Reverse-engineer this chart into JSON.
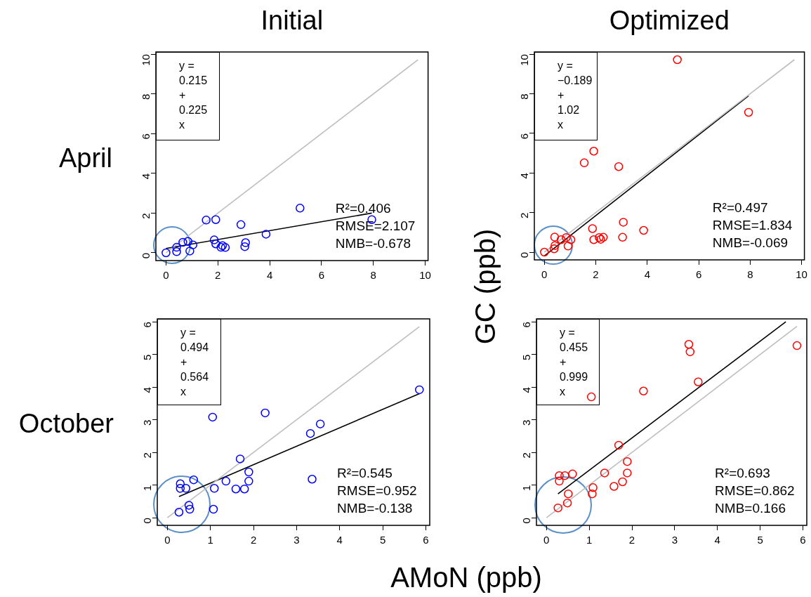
{
  "chart_data": [
    {
      "type": "scatter",
      "title": "Initial",
      "ylabel": "April",
      "xlim": [
        -0.39,
        10.11
      ],
      "ylim": [
        -0.39,
        10.11
      ],
      "xticks": [
        0,
        2,
        4,
        6,
        8,
        10
      ],
      "yticks": [
        0,
        2,
        4,
        6,
        8,
        10
      ],
      "grid": false,
      "marker": "circle",
      "annotations": [
        "y = 0.215 + 0.225 x",
        "R²=0.406",
        "RMSE=2.107",
        "NMB=-0.678"
      ],
      "series": [
        {
          "color": "#bebebe",
          "type": "line",
          "marker": "none",
          "x": [
            0,
            9.72
          ],
          "values": [
            0,
            9.72
          ]
        },
        {
          "color": "#000000",
          "type": "line",
          "marker": "none",
          "x": [
            0,
            7.94
          ],
          "values": [
            0.22,
            2.0
          ]
        },
        {
          "color": "#0000ff",
          "x": [
            0,
            0.41,
            0.41,
            0.65,
            0.85,
            0.92,
            1.04,
            1.55,
            1.92,
            1.86,
            1.92,
            2.12,
            2.18,
            2.29,
            2.89,
            3.07,
            3.04,
            3.86,
            5.17,
            7.94
          ],
          "values": [
            0,
            0.28,
            0.06,
            0.53,
            0.57,
            0.09,
            0.4,
            1.65,
            1.67,
            0.65,
            0.45,
            0.28,
            0.36,
            0.27,
            1.42,
            0.51,
            0.31,
            0.94,
            2.25,
            1.67
          ]
        }
      ]
    },
    {
      "type": "scatter",
      "title": "Optimized",
      "ylabel": "GC (ppb)",
      "xlim": [
        -0.39,
        10.11
      ],
      "ylim": [
        -0.39,
        10.11
      ],
      "xticks": [
        0,
        2,
        4,
        6,
        8,
        10
      ],
      "yticks": [
        0,
        2,
        4,
        6,
        8,
        10
      ],
      "grid": false,
      "marker": "circle",
      "annotations": [
        "y = −0.189 + 1.02 x",
        "R²=0.497",
        "RMSE=1.834",
        "NMB=-0.069"
      ],
      "series": [
        {
          "color": "#bebebe",
          "type": "line",
          "marker": "none",
          "x": [
            0,
            9.72
          ],
          "values": [
            0,
            9.72
          ]
        },
        {
          "color": "#000000",
          "type": "line",
          "marker": "none",
          "x": [
            0,
            7.94
          ],
          "values": [
            -0.19,
            7.9
          ]
        },
        {
          "color": "#ff0000",
          "x": [
            0,
            0.4,
            0.41,
            0.38,
            0.65,
            0.85,
            1.03,
            0.92,
            1.55,
            1.92,
            1.87,
            1.92,
            2.13,
            2.19,
            2.29,
            2.89,
            3.07,
            3.04,
            3.86,
            5.17,
            7.94
          ],
          "values": [
            0,
            0.76,
            0.33,
            0.17,
            0.63,
            0.74,
            0.63,
            0.31,
            4.51,
            5.1,
            1.19,
            0.63,
            0.74,
            0.65,
            0.75,
            4.32,
            1.51,
            0.75,
            1.1,
            9.72,
            7.06
          ]
        }
      ]
    },
    {
      "type": "scatter",
      "ylabel": "October",
      "xlim": [
        -0.234,
        6.09
      ],
      "ylim": [
        -0.234,
        6.09
      ],
      "xticks": [
        0,
        1,
        2,
        3,
        4,
        5,
        6
      ],
      "yticks": [
        0,
        1,
        2,
        3,
        4,
        5,
        6
      ],
      "grid": false,
      "marker": "circle",
      "annotations": [
        "y = 0.494 + 0.564 x",
        "R²=0.545",
        "RMSE=0.952",
        "NMB=-0.138"
      ],
      "series": [
        {
          "color": "#bebebe",
          "type": "line",
          "marker": "none",
          "x": [
            0,
            5.85
          ],
          "values": [
            0,
            5.85
          ]
        },
        {
          "color": "#000000",
          "type": "line",
          "marker": "none",
          "x": [
            0.27,
            5.85
          ],
          "values": [
            0.65,
            3.8
          ]
        },
        {
          "color": "#0000ff",
          "x": [
            0.27,
            0.3,
            0.3,
            0.43,
            0.5,
            0.52,
            0.61,
            1.05,
            1.09,
            1.07,
            1.36,
            1.59,
            1.69,
            1.79,
            1.89,
            1.89,
            2.27,
            3.32,
            3.55,
            3.36,
            5.85
          ],
          "values": [
            0.17,
            1.04,
            0.9,
            0.9,
            0.38,
            0.26,
            1.16,
            3.08,
            0.9,
            0.26,
            1.12,
            0.88,
            1.8,
            0.88,
            1.4,
            1.12,
            3.21,
            2.58,
            2.87,
            1.18,
            3.92
          ]
        }
      ]
    },
    {
      "type": "scatter",
      "xlabel": "AMoN (ppb)",
      "xlim": [
        -0.234,
        6.09
      ],
      "ylim": [
        -0.234,
        6.09
      ],
      "xticks": [
        0,
        1,
        2,
        3,
        4,
        5,
        6
      ],
      "yticks": [
        0,
        1,
        2,
        3,
        4,
        5,
        6
      ],
      "grid": false,
      "marker": "circle",
      "annotations": [
        "y = 0.455 + 0.999 x",
        "R²=0.693",
        "RMSE=0.862",
        "NMB=0.166"
      ],
      "series": [
        {
          "color": "#bebebe",
          "type": "line",
          "marker": "none",
          "x": [
            0,
            5.86
          ],
          "values": [
            0,
            5.86
          ]
        },
        {
          "color": "#000000",
          "type": "line",
          "marker": "none",
          "x": [
            0.27,
            5.6
          ],
          "values": [
            0.73,
            6.0
          ]
        },
        {
          "color": "#ff0000",
          "x": [
            0.27,
            0.3,
            0.3,
            0.43,
            0.49,
            0.51,
            0.61,
            1.05,
            1.09,
            1.07,
            1.36,
            1.58,
            1.69,
            1.78,
            1.89,
            1.89,
            2.27,
            3.33,
            3.36,
            3.55,
            5.86
          ],
          "values": [
            0.3,
            1.29,
            1.12,
            1.29,
            0.45,
            0.73,
            1.34,
            3.7,
            0.92,
            0.73,
            1.37,
            0.96,
            2.22,
            1.1,
            1.72,
            1.37,
            3.88,
            5.31,
            5.08,
            4.16,
            5.27
          ]
        }
      ]
    }
  ]
}
